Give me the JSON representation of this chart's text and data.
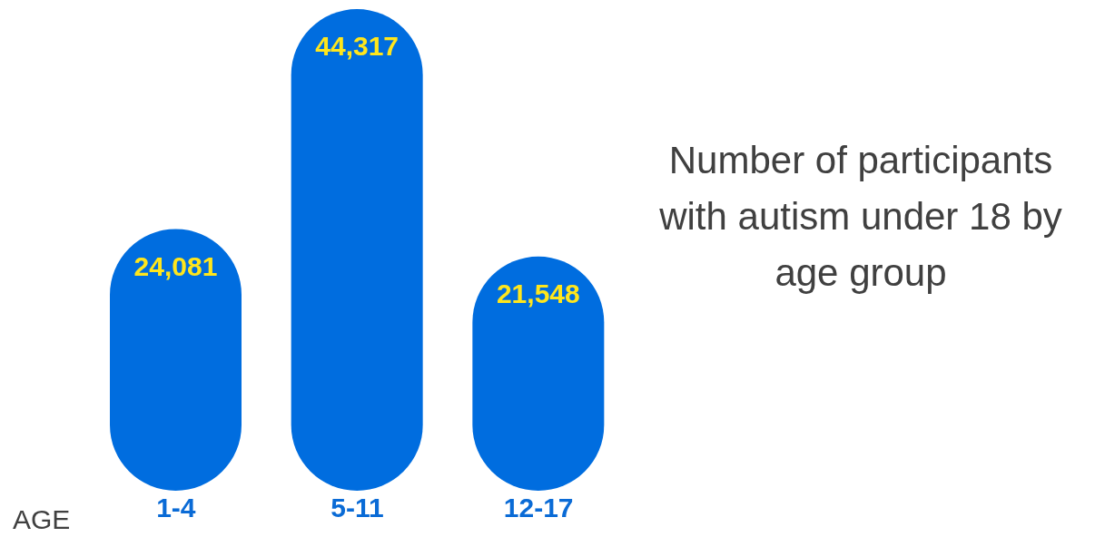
{
  "chart_data": {
    "type": "bar",
    "title": "Number of participants with autism under 18 by age group",
    "xlabel": "AGE",
    "categories": [
      "1-4",
      "5-11",
      "12-17"
    ],
    "values": [
      24081,
      44317,
      21548
    ],
    "value_labels": [
      "24,081",
      "44,317",
      "21,548"
    ],
    "color": "#006ddf"
  }
}
